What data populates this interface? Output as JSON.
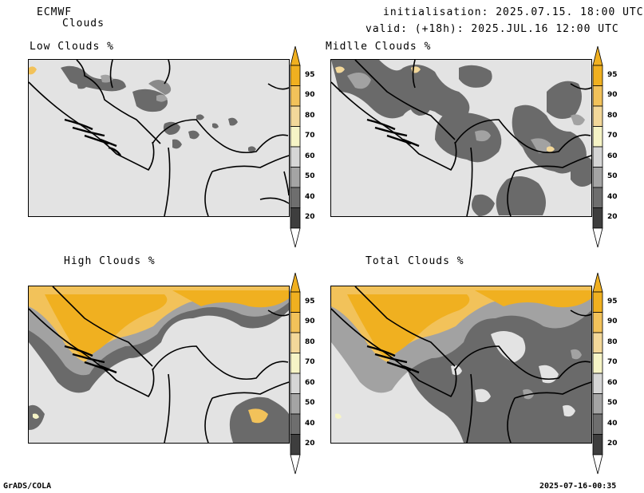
{
  "header": {
    "model": "ECMWF",
    "product": "Clouds",
    "init": "initialisation: 2025.07.15. 18:00 UTC",
    "valid": "valid: (+18h): 2025.JUL.16 12:00 UTC"
  },
  "panels": {
    "low": {
      "title": "Low Clouds %"
    },
    "mid": {
      "title": "Midlle Clouds %"
    },
    "high": {
      "title": "High Clouds %"
    },
    "total": {
      "title": "Total Clouds %"
    }
  },
  "colorbar": {
    "levels": [
      "95",
      "90",
      "80",
      "70",
      "60",
      "50",
      "40",
      "20"
    ],
    "colors": [
      "#f0b020",
      "#f2c25a",
      "#f3d89a",
      "#f6f4c6",
      "#d6d6d6",
      "#a4a4a4",
      "#6e6e6e",
      "#3e3e3e"
    ]
  },
  "footer": {
    "left": "GrADS/COLA",
    "right": "2025-07-16-00:35"
  }
}
